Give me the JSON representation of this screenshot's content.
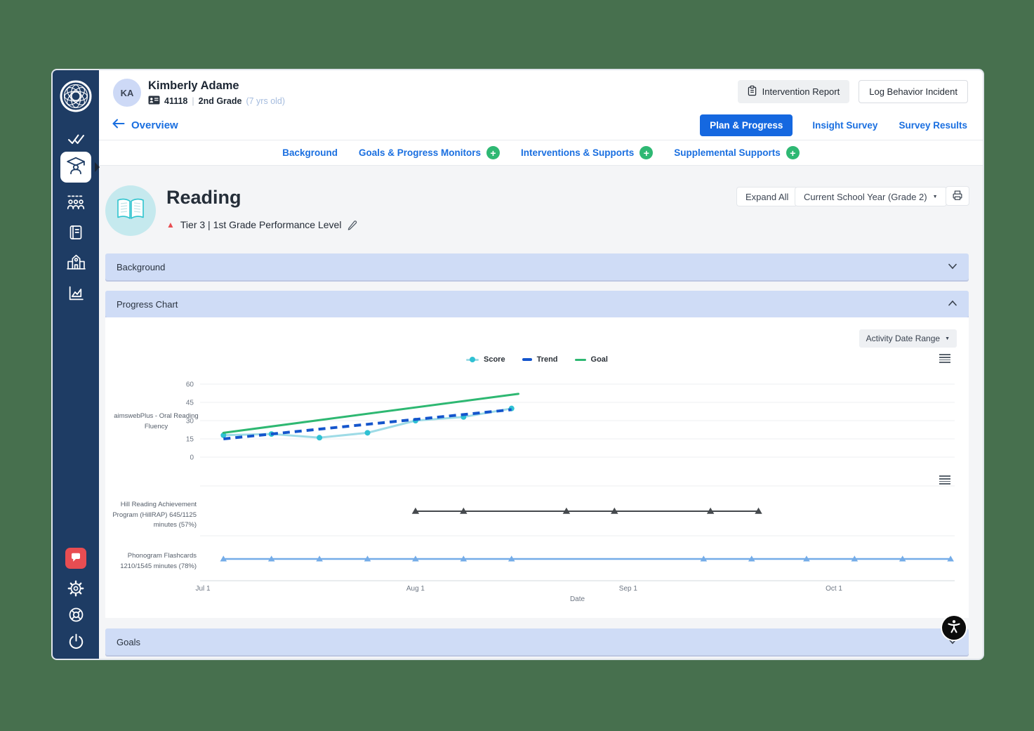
{
  "student": {
    "initials": "KA",
    "name": "Kimberly Adame",
    "student_id": "41118",
    "separator": "|",
    "grade": "2nd Grade",
    "age_note": "(7 yrs old)"
  },
  "header_actions": {
    "intervention_report": "Intervention Report",
    "log_behavior_incident": "Log Behavior Incident"
  },
  "nav": {
    "back_label": "Overview",
    "tabs": [
      {
        "label": "Plan & Progress",
        "active": true
      },
      {
        "label": "Insight Survey",
        "active": false
      },
      {
        "label": "Survey Results",
        "active": false
      }
    ]
  },
  "subnav": [
    {
      "label": "Background",
      "add": false
    },
    {
      "label": "Goals & Progress Monitors",
      "add": true
    },
    {
      "label": "Interventions & Supports",
      "add": true
    },
    {
      "label": "Supplemental Supports",
      "add": true
    }
  ],
  "reading": {
    "title": "Reading",
    "tier_label": "Tier 3 | 1st Grade Performance Level",
    "expand_all": "Expand All",
    "school_year": "Current School Year (Grade 2)"
  },
  "sections": {
    "background": "Background",
    "progress_chart": "Progress Chart",
    "goals": "Goals"
  },
  "chart_controls": {
    "activity_date_range": "Activity Date Range"
  },
  "legend": [
    {
      "label": "Score",
      "color": "#2fc1d3",
      "line_color": "#9edbe6",
      "style": "solid-dots"
    },
    {
      "label": "Trend",
      "color": "#1455cc",
      "style": "dashed"
    },
    {
      "label": "Goal",
      "color": "#2eb872",
      "style": "solid"
    }
  ],
  "chart_data": [
    {
      "type": "line",
      "row_label": "aimswebPlus - Oral Reading Fluency",
      "xlabel": "Date",
      "ylim": [
        0,
        60
      ],
      "y_ticks": [
        60,
        45,
        30,
        15,
        0
      ],
      "x_ticks": [
        {
          "label": "Jul 1",
          "day": 0
        },
        {
          "label": "Aug 1",
          "day": 31
        },
        {
          "label": "Sep 1",
          "day": 62
        },
        {
          "label": "Oct 1",
          "day": 92
        }
      ],
      "series": [
        {
          "name": "Score",
          "style": "solid-dots",
          "color": "#2fc1d3",
          "line_color": "#9edbe6",
          "points": [
            {
              "day": 3,
              "value": 18
            },
            {
              "day": 10,
              "value": 19
            },
            {
              "day": 17,
              "value": 16
            },
            {
              "day": 24,
              "value": 20
            },
            {
              "day": 31,
              "value": 30
            },
            {
              "day": 38,
              "value": 33
            },
            {
              "day": 45,
              "value": 40
            }
          ]
        },
        {
          "name": "Trend",
          "style": "dashed",
          "color": "#1455cc",
          "points": [
            {
              "day": 3,
              "value": 15
            },
            {
              "day": 45,
              "value": 39
            }
          ]
        },
        {
          "name": "Goal",
          "style": "solid",
          "color": "#2eb872",
          "points": [
            {
              "day": 3,
              "value": 20
            },
            {
              "day": 46,
              "value": 52
            }
          ]
        }
      ]
    },
    {
      "type": "line",
      "row_label": "Hill Reading Achievement Program (HillRAP) 645/1125 minutes (57%)",
      "series": [
        {
          "name": "HillRAP activity",
          "style": "solid-triangles",
          "color": "#45494d",
          "marker_days": [
            31,
            38,
            53,
            60,
            74,
            81
          ]
        }
      ]
    },
    {
      "type": "line",
      "row_label": "Phonogram Flashcards 1210/1545 minutes (78%)",
      "series": [
        {
          "name": "Phonogram Flashcards activity",
          "style": "solid-triangles",
          "color": "#74ace8",
          "marker_days": [
            3,
            10,
            17,
            24,
            31,
            38,
            45,
            73,
            80,
            88,
            95,
            102,
            109
          ]
        }
      ]
    }
  ],
  "colors": {
    "sidebar_navy": "#1e3c64",
    "accent_blue": "#1568e0",
    "link_blue": "#1a6fe0",
    "add_green": "#2eb873",
    "accordion_blue": "#cfdcf6",
    "alert_red": "#e84d52",
    "reading_teal": "#c5e9ee"
  }
}
